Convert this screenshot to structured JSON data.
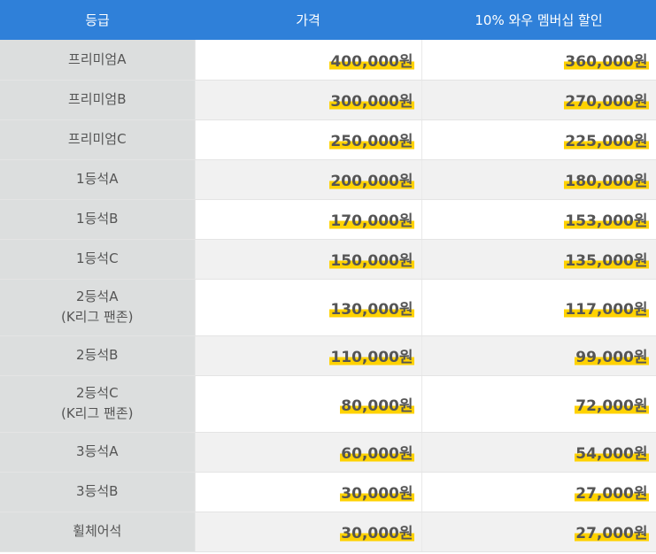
{
  "header": {
    "grade": "등급",
    "price": "가격",
    "discount": "10% 와우 멤버십 할인"
  },
  "rows": [
    {
      "grade": [
        "프리미엄A"
      ],
      "price": "400,000원",
      "discount": "360,000원"
    },
    {
      "grade": [
        "프리미엄B"
      ],
      "price": "300,000원",
      "discount": "270,000원"
    },
    {
      "grade": [
        "프리미엄C"
      ],
      "price": "250,000원",
      "discount": "225,000원"
    },
    {
      "grade": [
        "1등석A"
      ],
      "price": "200,000원",
      "discount": "180,000원"
    },
    {
      "grade": [
        "1등석B"
      ],
      "price": "170,000원",
      "discount": "153,000원"
    },
    {
      "grade": [
        "1등석C"
      ],
      "price": "150,000원",
      "discount": "135,000원"
    },
    {
      "grade": [
        "2등석A",
        "(K리그 팬존)"
      ],
      "price": "130,000원",
      "discount": "117,000원"
    },
    {
      "grade": [
        "2등석B"
      ],
      "price": "110,000원",
      "discount": "99,000원"
    },
    {
      "grade": [
        "2등석C",
        "(K리그 팬존)"
      ],
      "price": "80,000원",
      "discount": "72,000원"
    },
    {
      "grade": [
        "3등석A"
      ],
      "price": "60,000원",
      "discount": "54,000원"
    },
    {
      "grade": [
        "3등석B"
      ],
      "price": "30,000원",
      "discount": "27,000원"
    },
    {
      "grade": [
        "휠체어석"
      ],
      "price": "30,000원",
      "discount": "27,000원"
    }
  ],
  "colors": {
    "header_bg": "#2f80d9",
    "grade_bg": "#dcdede",
    "highlight": "#ffd200"
  }
}
